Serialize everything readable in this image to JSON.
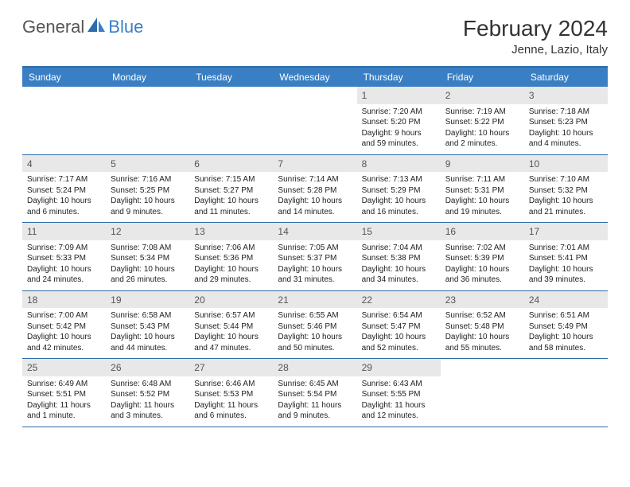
{
  "logo": {
    "text1": "General",
    "text2": "Blue"
  },
  "title": "February 2024",
  "location": "Jenne, Lazio, Italy",
  "colors": {
    "header_bg": "#3a7fc4",
    "border": "#2d6ca8",
    "daynum_bg": "#e8e8e8",
    "logo_blue": "#3a7fc4"
  },
  "dayNames": [
    "Sunday",
    "Monday",
    "Tuesday",
    "Wednesday",
    "Thursday",
    "Friday",
    "Saturday"
  ],
  "weeks": [
    [
      null,
      null,
      null,
      null,
      {
        "n": "1",
        "sr": "7:20 AM",
        "ss": "5:20 PM",
        "dl": "9 hours and 59 minutes."
      },
      {
        "n": "2",
        "sr": "7:19 AM",
        "ss": "5:22 PM",
        "dl": "10 hours and 2 minutes."
      },
      {
        "n": "3",
        "sr": "7:18 AM",
        "ss": "5:23 PM",
        "dl": "10 hours and 4 minutes."
      }
    ],
    [
      {
        "n": "4",
        "sr": "7:17 AM",
        "ss": "5:24 PM",
        "dl": "10 hours and 6 minutes."
      },
      {
        "n": "5",
        "sr": "7:16 AM",
        "ss": "5:25 PM",
        "dl": "10 hours and 9 minutes."
      },
      {
        "n": "6",
        "sr": "7:15 AM",
        "ss": "5:27 PM",
        "dl": "10 hours and 11 minutes."
      },
      {
        "n": "7",
        "sr": "7:14 AM",
        "ss": "5:28 PM",
        "dl": "10 hours and 14 minutes."
      },
      {
        "n": "8",
        "sr": "7:13 AM",
        "ss": "5:29 PM",
        "dl": "10 hours and 16 minutes."
      },
      {
        "n": "9",
        "sr": "7:11 AM",
        "ss": "5:31 PM",
        "dl": "10 hours and 19 minutes."
      },
      {
        "n": "10",
        "sr": "7:10 AM",
        "ss": "5:32 PM",
        "dl": "10 hours and 21 minutes."
      }
    ],
    [
      {
        "n": "11",
        "sr": "7:09 AM",
        "ss": "5:33 PM",
        "dl": "10 hours and 24 minutes."
      },
      {
        "n": "12",
        "sr": "7:08 AM",
        "ss": "5:34 PM",
        "dl": "10 hours and 26 minutes."
      },
      {
        "n": "13",
        "sr": "7:06 AM",
        "ss": "5:36 PM",
        "dl": "10 hours and 29 minutes."
      },
      {
        "n": "14",
        "sr": "7:05 AM",
        "ss": "5:37 PM",
        "dl": "10 hours and 31 minutes."
      },
      {
        "n": "15",
        "sr": "7:04 AM",
        "ss": "5:38 PM",
        "dl": "10 hours and 34 minutes."
      },
      {
        "n": "16",
        "sr": "7:02 AM",
        "ss": "5:39 PM",
        "dl": "10 hours and 36 minutes."
      },
      {
        "n": "17",
        "sr": "7:01 AM",
        "ss": "5:41 PM",
        "dl": "10 hours and 39 minutes."
      }
    ],
    [
      {
        "n": "18",
        "sr": "7:00 AM",
        "ss": "5:42 PM",
        "dl": "10 hours and 42 minutes."
      },
      {
        "n": "19",
        "sr": "6:58 AM",
        "ss": "5:43 PM",
        "dl": "10 hours and 44 minutes."
      },
      {
        "n": "20",
        "sr": "6:57 AM",
        "ss": "5:44 PM",
        "dl": "10 hours and 47 minutes."
      },
      {
        "n": "21",
        "sr": "6:55 AM",
        "ss": "5:46 PM",
        "dl": "10 hours and 50 minutes."
      },
      {
        "n": "22",
        "sr": "6:54 AM",
        "ss": "5:47 PM",
        "dl": "10 hours and 52 minutes."
      },
      {
        "n": "23",
        "sr": "6:52 AM",
        "ss": "5:48 PM",
        "dl": "10 hours and 55 minutes."
      },
      {
        "n": "24",
        "sr": "6:51 AM",
        "ss": "5:49 PM",
        "dl": "10 hours and 58 minutes."
      }
    ],
    [
      {
        "n": "25",
        "sr": "6:49 AM",
        "ss": "5:51 PM",
        "dl": "11 hours and 1 minute."
      },
      {
        "n": "26",
        "sr": "6:48 AM",
        "ss": "5:52 PM",
        "dl": "11 hours and 3 minutes."
      },
      {
        "n": "27",
        "sr": "6:46 AM",
        "ss": "5:53 PM",
        "dl": "11 hours and 6 minutes."
      },
      {
        "n": "28",
        "sr": "6:45 AM",
        "ss": "5:54 PM",
        "dl": "11 hours and 9 minutes."
      },
      {
        "n": "29",
        "sr": "6:43 AM",
        "ss": "5:55 PM",
        "dl": "11 hours and 12 minutes."
      },
      null,
      null
    ]
  ],
  "labels": {
    "sunrise": "Sunrise: ",
    "sunset": "Sunset: ",
    "daylight": "Daylight: "
  }
}
